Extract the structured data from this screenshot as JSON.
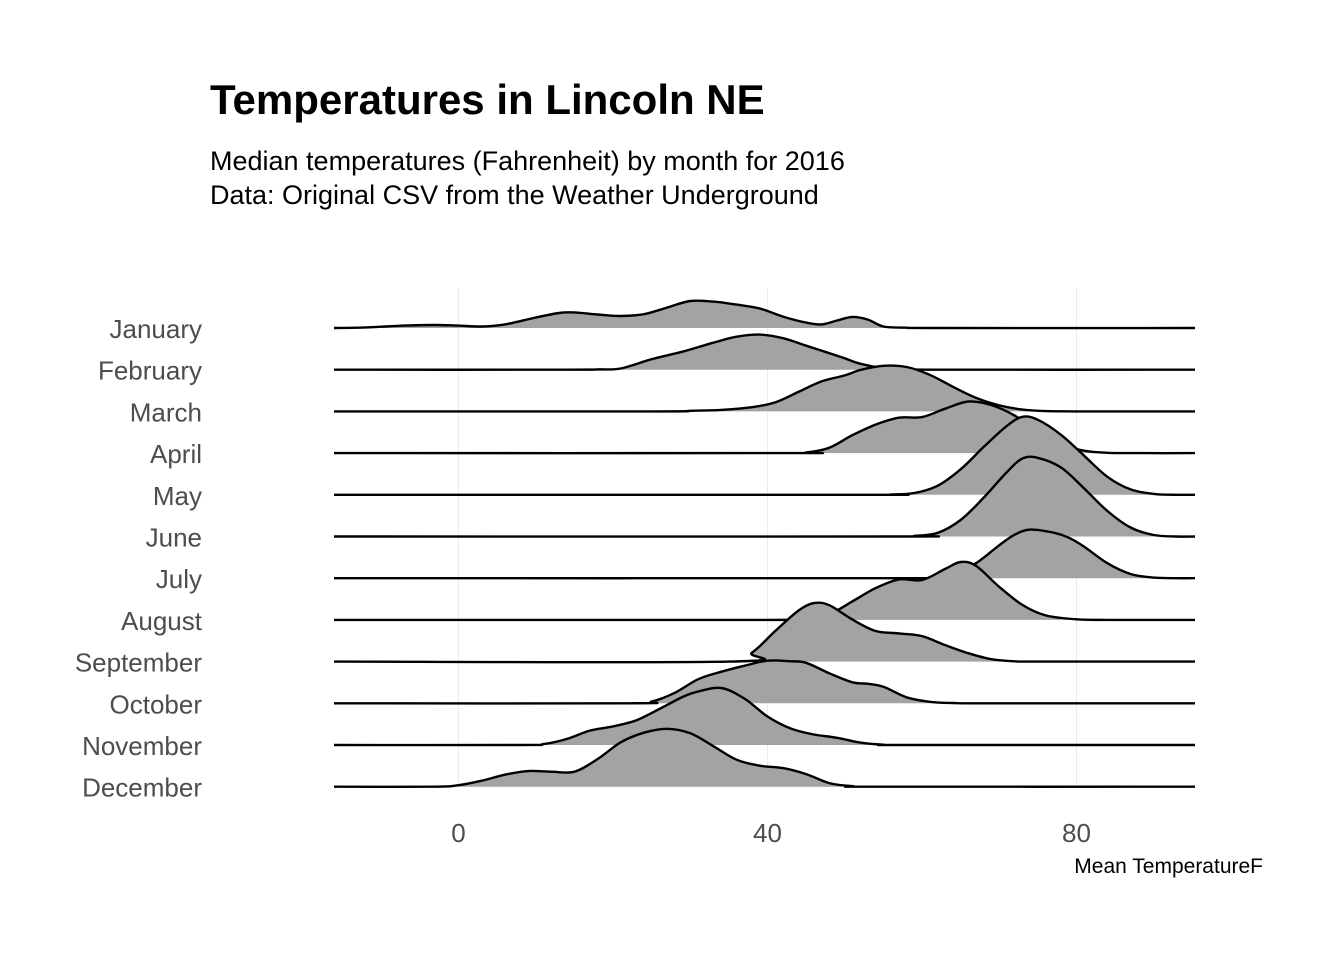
{
  "chart_data": {
    "type": "ridgeline",
    "title": "Temperatures in Lincoln NE",
    "subtitle_lines": [
      "Median temperatures (Fahrenheit) by month for 2016",
      "Data: Original CSV from the Weather Underground"
    ],
    "xlabel": "Mean TemperatureF",
    "ylabel": "",
    "xlim": [
      -16,
      95
    ],
    "x_ticks": [
      "0",
      "40",
      "80"
    ],
    "x_tick_values": [
      0,
      40,
      80
    ],
    "grid": "vertical and horizontal lines at ticks/months",
    "fill_color": "#a3a3a3",
    "line_color": "#000000",
    "categories": [
      "January",
      "February",
      "March",
      "April",
      "May",
      "June",
      "July",
      "August",
      "September",
      "October",
      "November",
      "December"
    ],
    "series": [
      {
        "name": "January",
        "points": [
          [
            -16,
            0
          ],
          [
            -12,
            0.02
          ],
          [
            -7,
            0.08
          ],
          [
            -3,
            0.1
          ],
          [
            0,
            0.08
          ],
          [
            3,
            0.05
          ],
          [
            6,
            0.12
          ],
          [
            10,
            0.35
          ],
          [
            13,
            0.5
          ],
          [
            15,
            0.52
          ],
          [
            18,
            0.45
          ],
          [
            21,
            0.4
          ],
          [
            24,
            0.46
          ],
          [
            27,
            0.68
          ],
          [
            30,
            0.9
          ],
          [
            33,
            0.88
          ],
          [
            36,
            0.78
          ],
          [
            39,
            0.65
          ],
          [
            42,
            0.38
          ],
          [
            45,
            0.18
          ],
          [
            47,
            0.12
          ],
          [
            49,
            0.25
          ],
          [
            51,
            0.37
          ],
          [
            53,
            0.28
          ],
          [
            55,
            0.05
          ],
          [
            58,
            0.01
          ],
          [
            62,
            0
          ],
          [
            95,
            0
          ]
        ]
      },
      {
        "name": "February",
        "points": [
          [
            -16,
            0
          ],
          [
            14,
            0
          ],
          [
            18,
            0.01
          ],
          [
            21,
            0.04
          ],
          [
            25,
            0.35
          ],
          [
            29,
            0.6
          ],
          [
            33,
            0.9
          ],
          [
            36,
            1.1
          ],
          [
            39,
            1.17
          ],
          [
            42,
            1.05
          ],
          [
            45,
            0.8
          ],
          [
            48,
            0.55
          ],
          [
            50,
            0.38
          ],
          [
            52,
            0.2
          ],
          [
            55,
            0.05
          ],
          [
            58,
            0.01
          ],
          [
            62,
            0
          ],
          [
            95,
            0
          ]
        ]
      },
      {
        "name": "March",
        "points": [
          [
            -16,
            0
          ],
          [
            25,
            0
          ],
          [
            30,
            0.02
          ],
          [
            34,
            0.05
          ],
          [
            38,
            0.14
          ],
          [
            41,
            0.3
          ],
          [
            44,
            0.65
          ],
          [
            47,
            1.0
          ],
          [
            50,
            1.2
          ],
          [
            52,
            1.38
          ],
          [
            55,
            1.52
          ],
          [
            58,
            1.48
          ],
          [
            61,
            1.22
          ],
          [
            64,
            0.82
          ],
          [
            67,
            0.45
          ],
          [
            70,
            0.2
          ],
          [
            73,
            0.06
          ],
          [
            76,
            0.01
          ],
          [
            80,
            0
          ],
          [
            95,
            0
          ]
        ]
      },
      {
        "name": "April",
        "points": [
          [
            -16,
            0
          ],
          [
            42,
            0
          ],
          [
            45,
            0.02
          ],
          [
            48,
            0.18
          ],
          [
            51,
            0.6
          ],
          [
            54,
            0.95
          ],
          [
            57,
            1.18
          ],
          [
            60,
            1.2
          ],
          [
            63,
            1.48
          ],
          [
            66,
            1.72
          ],
          [
            69,
            1.6
          ],
          [
            72,
            1.25
          ],
          [
            75,
            0.72
          ],
          [
            78,
            0.3
          ],
          [
            81,
            0.08
          ],
          [
            84,
            0.01
          ],
          [
            88,
            0
          ],
          [
            95,
            0
          ]
        ]
      },
      {
        "name": "May",
        "points": [
          [
            -16,
            0
          ],
          [
            52,
            0
          ],
          [
            56,
            0.01
          ],
          [
            59,
            0.06
          ],
          [
            62,
            0.3
          ],
          [
            65,
            0.85
          ],
          [
            68,
            1.6
          ],
          [
            71,
            2.3
          ],
          [
            73,
            2.6
          ],
          [
            75,
            2.5
          ],
          [
            78,
            2.0
          ],
          [
            81,
            1.3
          ],
          [
            84,
            0.6
          ],
          [
            87,
            0.18
          ],
          [
            90,
            0.03
          ],
          [
            93,
            0
          ],
          [
            95,
            0
          ]
        ]
      },
      {
        "name": "June",
        "points": [
          [
            -16,
            0
          ],
          [
            56,
            0
          ],
          [
            59,
            0.02
          ],
          [
            62,
            0.12
          ],
          [
            65,
            0.55
          ],
          [
            68,
            1.3
          ],
          [
            71,
            2.15
          ],
          [
            73,
            2.6
          ],
          [
            75,
            2.62
          ],
          [
            78,
            2.3
          ],
          [
            81,
            1.6
          ],
          [
            84,
            0.85
          ],
          [
            87,
            0.3
          ],
          [
            90,
            0.05
          ],
          [
            93,
            0
          ],
          [
            95,
            0
          ]
        ]
      },
      {
        "name": "July",
        "points": [
          [
            -16,
            0
          ],
          [
            58,
            0
          ],
          [
            61,
            0.02
          ],
          [
            64,
            0.12
          ],
          [
            67,
            0.5
          ],
          [
            70,
            1.1
          ],
          [
            72,
            1.45
          ],
          [
            74,
            1.62
          ],
          [
            77,
            1.52
          ],
          [
            79,
            1.35
          ],
          [
            81,
            1.05
          ],
          [
            84,
            0.5
          ],
          [
            87,
            0.14
          ],
          [
            90,
            0.02
          ],
          [
            93,
            0
          ],
          [
            95,
            0
          ]
        ]
      },
      {
        "name": "August",
        "points": [
          [
            -16,
            0
          ],
          [
            40,
            0
          ],
          [
            44,
            0.02
          ],
          [
            48,
            0.2
          ],
          [
            51,
            0.62
          ],
          [
            54,
            1.06
          ],
          [
            57,
            1.35
          ],
          [
            60,
            1.33
          ],
          [
            63,
            1.7
          ],
          [
            65,
            1.93
          ],
          [
            67,
            1.8
          ],
          [
            70,
            1.1
          ],
          [
            73,
            0.5
          ],
          [
            76,
            0.15
          ],
          [
            80,
            0.02
          ],
          [
            84,
            0
          ],
          [
            95,
            0
          ]
        ]
      },
      {
        "name": "September",
        "points": [
          [
            -16,
            0
          ],
          [
            35,
            0
          ],
          [
            38,
            0.3
          ],
          [
            41,
            1.02
          ],
          [
            44,
            1.7
          ],
          [
            46,
            1.95
          ],
          [
            48,
            1.88
          ],
          [
            51,
            1.4
          ],
          [
            54,
            1.02
          ],
          [
            57,
            0.94
          ],
          [
            60,
            0.85
          ],
          [
            63,
            0.55
          ],
          [
            66,
            0.28
          ],
          [
            69,
            0.08
          ],
          [
            72,
            0.01
          ],
          [
            75,
            0
          ],
          [
            95,
            0
          ]
        ]
      },
      {
        "name": "October",
        "points": [
          [
            -16,
            0
          ],
          [
            22,
            0
          ],
          [
            25,
            0.06
          ],
          [
            28,
            0.35
          ],
          [
            31,
            0.8
          ],
          [
            34,
            1.05
          ],
          [
            37,
            1.25
          ],
          [
            40,
            1.42
          ],
          [
            43,
            1.4
          ],
          [
            45,
            1.35
          ],
          [
            48,
            1.0
          ],
          [
            51,
            0.7
          ],
          [
            53,
            0.65
          ],
          [
            55,
            0.55
          ],
          [
            58,
            0.2
          ],
          [
            61,
            0.05
          ],
          [
            64,
            0.01
          ],
          [
            68,
            0
          ],
          [
            95,
            0
          ]
        ]
      },
      {
        "name": "November",
        "points": [
          [
            -16,
            0
          ],
          [
            8,
            0
          ],
          [
            11,
            0.03
          ],
          [
            14,
            0.2
          ],
          [
            17,
            0.48
          ],
          [
            20,
            0.62
          ],
          [
            23,
            0.82
          ],
          [
            26,
            1.2
          ],
          [
            29,
            1.6
          ],
          [
            31,
            1.78
          ],
          [
            34,
            1.9
          ],
          [
            37,
            1.55
          ],
          [
            40,
            0.95
          ],
          [
            43,
            0.55
          ],
          [
            46,
            0.35
          ],
          [
            49,
            0.24
          ],
          [
            52,
            0.08
          ],
          [
            55,
            0.01
          ],
          [
            58,
            0
          ],
          [
            95,
            0
          ]
        ]
      },
      {
        "name": "December",
        "points": [
          [
            -16,
            0
          ],
          [
            -3,
            0
          ],
          [
            0,
            0.05
          ],
          [
            3,
            0.2
          ],
          [
            6,
            0.4
          ],
          [
            9,
            0.52
          ],
          [
            12,
            0.5
          ],
          [
            15,
            0.5
          ],
          [
            18,
            0.92
          ],
          [
            21,
            1.48
          ],
          [
            24,
            1.8
          ],
          [
            27,
            1.93
          ],
          [
            30,
            1.78
          ],
          [
            33,
            1.35
          ],
          [
            36,
            0.9
          ],
          [
            39,
            0.7
          ],
          [
            42,
            0.62
          ],
          [
            45,
            0.42
          ],
          [
            48,
            0.12
          ],
          [
            51,
            0.02
          ],
          [
            54,
            0
          ],
          [
            95,
            0
          ]
        ]
      }
    ]
  }
}
